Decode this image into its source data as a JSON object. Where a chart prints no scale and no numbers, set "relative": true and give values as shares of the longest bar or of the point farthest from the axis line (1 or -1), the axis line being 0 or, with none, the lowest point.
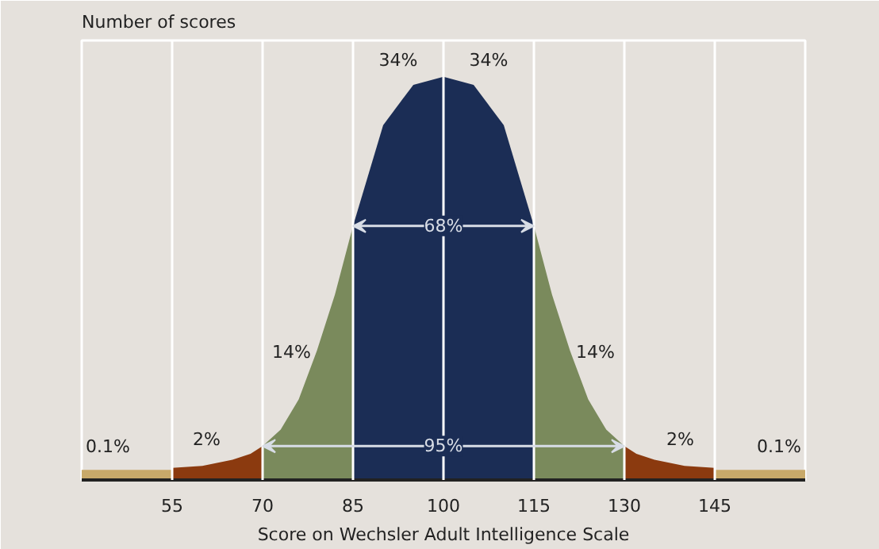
{
  "chart_data": {
    "type": "area",
    "relative": true,
    "ylabel": "Number of scores",
    "xlabel": "Score on Wechsler Adult Intelligence Scale",
    "xlim": [
      40,
      160
    ],
    "xticks": [
      55,
      70,
      85,
      100,
      115,
      130,
      145
    ],
    "grid": "x",
    "tick_labels": "x",
    "series": [
      {
        "color": "#c8a96a",
        "x": [
          40,
          55
        ],
        "values": [
          0.025,
          0.025
        ]
      },
      {
        "color": "#8b3a0f",
        "x": [
          55,
          60,
          65,
          68,
          70
        ],
        "values": [
          0.03,
          0.035,
          0.05,
          0.065,
          0.084
        ]
      },
      {
        "color": "#7a8a5c",
        "x": [
          70,
          73,
          76,
          79,
          82,
          85
        ],
        "values": [
          0.084,
          0.125,
          0.2,
          0.32,
          0.46,
          0.63
        ]
      },
      {
        "color": "#1b2d55",
        "x": [
          85,
          90,
          95,
          100,
          105,
          110,
          115
        ],
        "values": [
          0.63,
          0.88,
          0.98,
          1,
          0.98,
          0.88,
          0.63
        ]
      },
      {
        "color": "#7a8a5c",
        "x": [
          115,
          118,
          121,
          124,
          127,
          130
        ],
        "values": [
          0.63,
          0.46,
          0.32,
          0.2,
          0.125,
          0.084
        ]
      },
      {
        "color": "#8b3a0f",
        "x": [
          130,
          132,
          135,
          140,
          145
        ],
        "values": [
          0.084,
          0.065,
          0.05,
          0.035,
          0.03
        ]
      },
      {
        "color": "#c8a96a",
        "x": [
          145,
          160
        ],
        "values": [
          0.025,
          0.025
        ]
      }
    ],
    "annotations": [
      "0.1%",
      "2%",
      "14%",
      "34%",
      "34%",
      "14%",
      "2%",
      "0.1%",
      "68%",
      "95%"
    ]
  }
}
